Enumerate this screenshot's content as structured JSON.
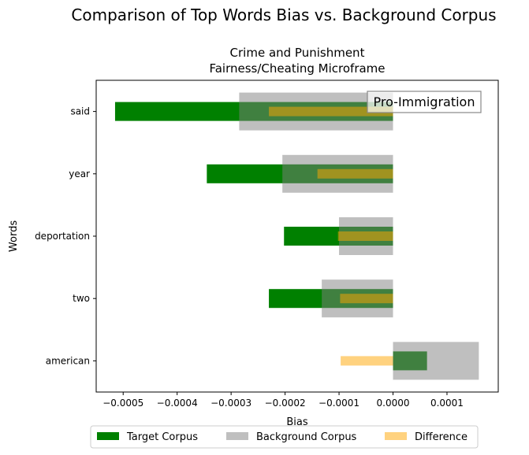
{
  "figure": {
    "suptitle": "Comparison of Top Words Bias vs. Background Corpus"
  },
  "chart_data": {
    "type": "bar",
    "orientation": "horizontal",
    "title_lines": [
      "Crime and Punishment",
      "Fairness/Cheating Microframe"
    ],
    "xlabel": "Bias",
    "ylabel": "Words",
    "annotation": "Pro-Immigration",
    "categories": [
      "said",
      "year",
      "deportation",
      "two",
      "american"
    ],
    "xlim": [
      -0.00055,
      0.000195
    ],
    "xticks": [
      -0.0005,
      -0.0004,
      -0.0003,
      -0.0002,
      -0.0001,
      0.0,
      0.0001
    ],
    "xtick_labels": [
      "−0.0005",
      "−0.0004",
      "−0.0003",
      "−0.0002",
      "−0.0001",
      "0.0000",
      "0.0001"
    ],
    "grid": false,
    "legend_position": "bottom-center",
    "series": [
      {
        "name": "Target Corpus",
        "color": "#008000",
        "opacity": 1.0,
        "values": [
          -0.000515,
          -0.000345,
          -0.000202,
          -0.00023,
          6.3e-05
        ]
      },
      {
        "name": "Background Corpus",
        "color": "#808080",
        "opacity": 0.5,
        "values": [
          -0.000285,
          -0.000205,
          -0.0001,
          -0.000132,
          0.000159
        ]
      },
      {
        "name": "Difference",
        "color": "#ffa500",
        "opacity": 0.5,
        "values": [
          -0.00023,
          -0.00014,
          -0.000102,
          -9.8e-05,
          -9.7e-05
        ]
      }
    ]
  }
}
